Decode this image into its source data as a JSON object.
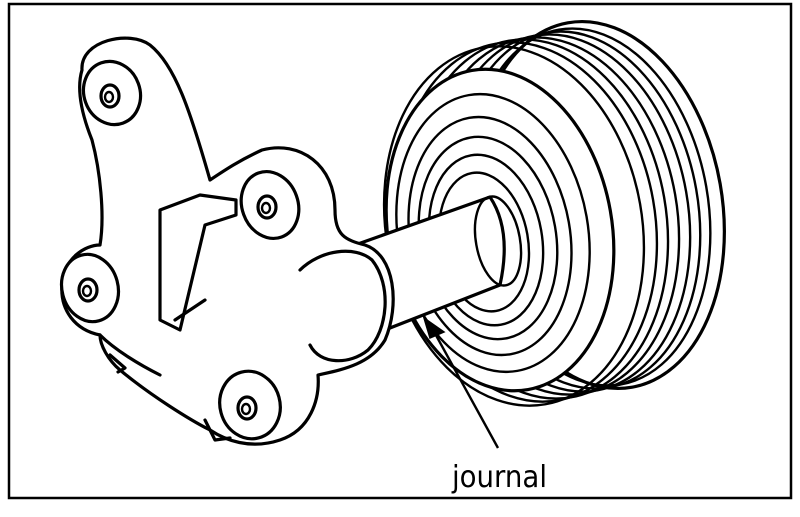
{
  "diagram": {
    "label_journal": "journal",
    "colors": {
      "line": "#000000",
      "background": "#ffffff"
    }
  }
}
